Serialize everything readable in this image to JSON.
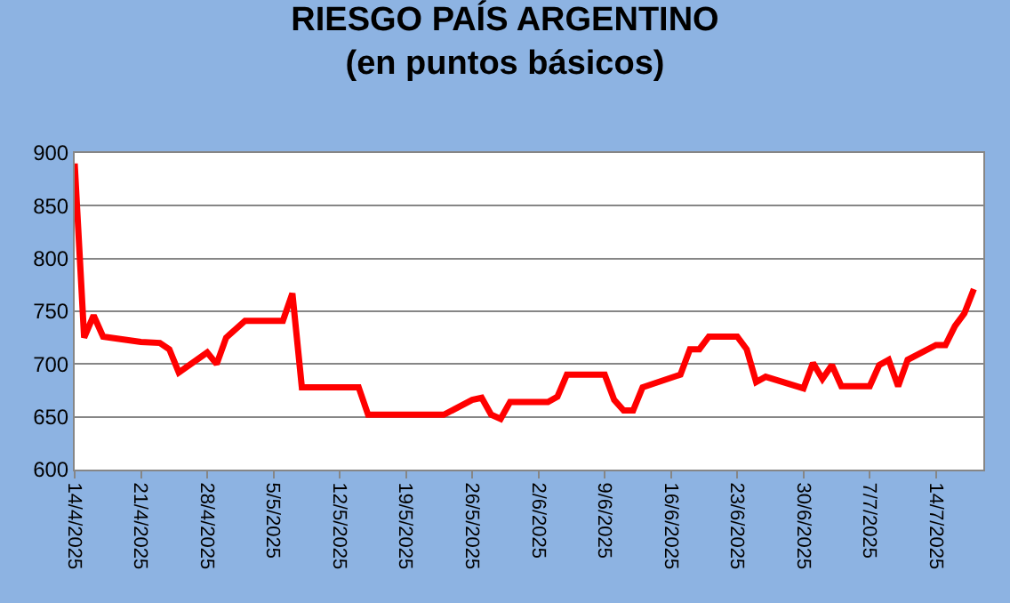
{
  "chart_data": {
    "type": "line",
    "title": "RIESGO PAÍS ARGENTINO",
    "subtitle": "(en puntos básicos)",
    "x": [
      "2025-04-14",
      "2025-04-15",
      "2025-04-16",
      "2025-04-17",
      "2025-04-21",
      "2025-04-23",
      "2025-04-24",
      "2025-04-25",
      "2025-04-28",
      "2025-04-29",
      "2025-04-30",
      "2025-05-02",
      "2025-05-06",
      "2025-05-07",
      "2025-05-08",
      "2025-05-14",
      "2025-05-15",
      "2025-05-23",
      "2025-05-26",
      "2025-05-27",
      "2025-05-28",
      "2025-05-29",
      "2025-05-30",
      "2025-06-03",
      "2025-06-04",
      "2025-06-05",
      "2025-06-09",
      "2025-06-10",
      "2025-06-11",
      "2025-06-12",
      "2025-06-13",
      "2025-06-17",
      "2025-06-18",
      "2025-06-19",
      "2025-06-20",
      "2025-06-23",
      "2025-06-24",
      "2025-06-25",
      "2025-06-26",
      "2025-06-30",
      "2025-07-01",
      "2025-07-02",
      "2025-07-03",
      "2025-07-04",
      "2025-07-07",
      "2025-07-08",
      "2025-07-09",
      "2025-07-10",
      "2025-07-11",
      "2025-07-14",
      "2025-07-15",
      "2025-07-16",
      "2025-07-17",
      "2025-07-18"
    ],
    "series": [
      {
        "color": "#ff0000",
        "values": [
          890,
          725,
          746,
          726,
          721,
          720,
          714,
          692,
          711,
          700,
          725,
          741,
          741,
          767,
          678,
          678,
          652,
          652,
          666,
          668,
          652,
          648,
          664,
          664,
          669,
          690,
          690,
          666,
          656,
          656,
          678,
          690,
          714,
          714,
          726,
          726,
          714,
          683,
          688,
          677,
          701,
          686,
          699,
          679,
          679,
          699,
          704,
          679,
          704,
          718,
          718,
          736,
          748,
          771
        ]
      }
    ],
    "xlim": [
      "2025-04-14",
      "2025-07-19"
    ],
    "xticks": [
      {
        "value": "2025-04-14",
        "label": "14/4/2025"
      },
      {
        "value": "2025-04-21",
        "label": "21/4/2025"
      },
      {
        "value": "2025-04-28",
        "label": "28/4/2025"
      },
      {
        "value": "2025-05-05",
        "label": "5/5/2025"
      },
      {
        "value": "2025-05-12",
        "label": "12/5/2025"
      },
      {
        "value": "2025-05-19",
        "label": "19/5/2025"
      },
      {
        "value": "2025-05-26",
        "label": "26/5/2025"
      },
      {
        "value": "2025-06-02",
        "label": "2/6/2025"
      },
      {
        "value": "2025-06-09",
        "label": "9/6/2025"
      },
      {
        "value": "2025-06-16",
        "label": "16/6/2025"
      },
      {
        "value": "2025-06-23",
        "label": "23/6/2025"
      },
      {
        "value": "2025-06-30",
        "label": "30/6/2025"
      },
      {
        "value": "2025-07-07",
        "label": "7/7/2025"
      },
      {
        "value": "2025-07-14",
        "label": "14/7/2025"
      }
    ],
    "ylim": [
      600,
      900
    ],
    "yticks": [
      600,
      650,
      700,
      750,
      800,
      850,
      900
    ],
    "grid": "y",
    "marker": "none",
    "line_style": "solid"
  }
}
